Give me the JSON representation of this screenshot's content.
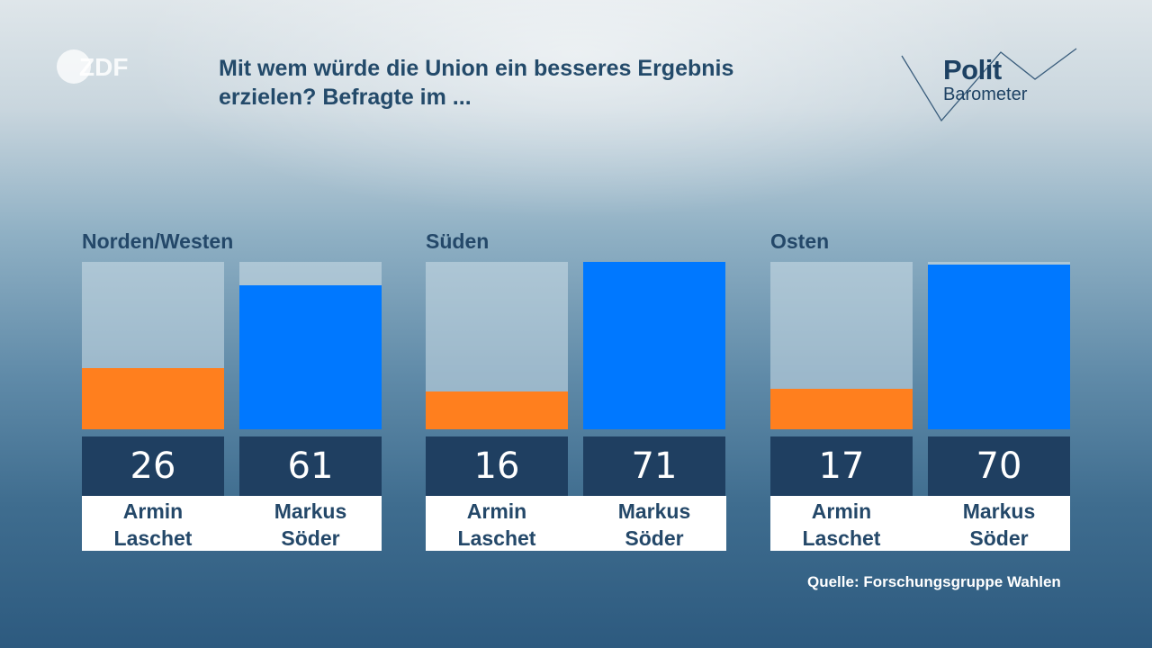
{
  "header": {
    "logo_text": "ZDF",
    "title_line1": "Mit wem würde die Union ein besseres Ergebnis",
    "title_line2": "erzielen? Befragte im ...",
    "brand_line1": "Polit",
    "brand_line2": "Barometer"
  },
  "chart_data": {
    "type": "bar",
    "title": "Mit wem würde die Union ein besseres Ergebnis erzielen? Befragte im ...",
    "unit": "",
    "ylim": [
      0,
      71
    ],
    "groups": [
      {
        "label": "Norden/Westen",
        "bars": [
          {
            "name_line1": "Armin",
            "name_line2": "Laschet",
            "value": 26,
            "display": "26",
            "color": "#ff7f1e"
          },
          {
            "name_line1": "Markus",
            "name_line2": "Söder",
            "value": 61,
            "display": "61",
            "color": "#0078ff"
          }
        ]
      },
      {
        "label": "Süden",
        "bars": [
          {
            "name_line1": "Armin",
            "name_line2": "Laschet",
            "value": 16,
            "display": "16",
            "color": "#ff7f1e"
          },
          {
            "name_line1": "Markus",
            "name_line2": "Söder",
            "value": 71,
            "display": "71",
            "color": "#0078ff"
          }
        ]
      },
      {
        "label": "Osten",
        "bars": [
          {
            "name_line1": "Armin",
            "name_line2": "Laschet",
            "value": 17,
            "display": "17",
            "color": "#ff7f1e"
          },
          {
            "name_line1": "Markus",
            "name_line2": "Söder",
            "value": 70,
            "display": "70",
            "color": "#0078ff"
          }
        ]
      }
    ],
    "legend": "none",
    "grid": false
  },
  "footer": {
    "source": "Quelle: Forschungsgruppe Wahlen"
  }
}
